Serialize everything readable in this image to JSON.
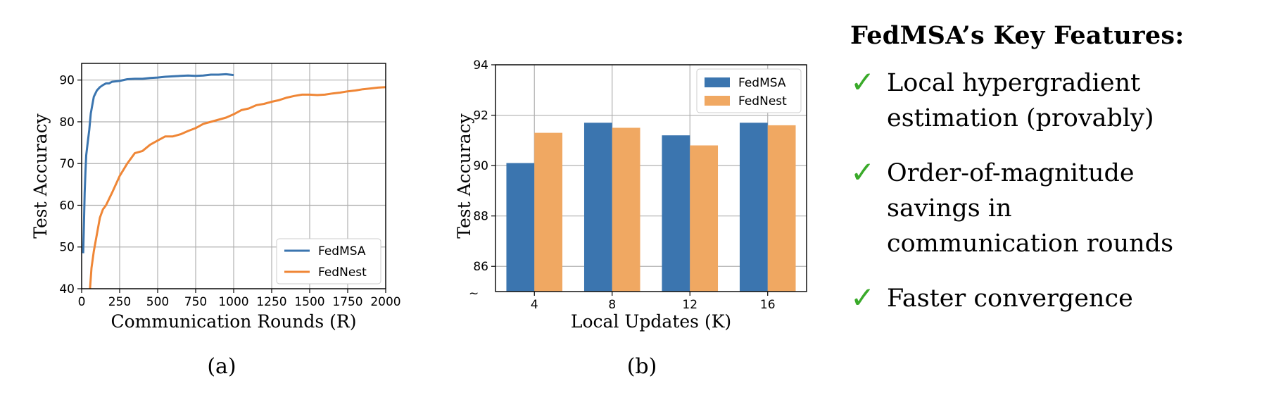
{
  "chart_data": [
    {
      "type": "line",
      "xlabel": "Communication Rounds (R)",
      "ylabel": "Test Accuracy",
      "xlim": [
        0,
        2000
      ],
      "ylim": [
        40,
        94
      ],
      "xticks": [
        0,
        250,
        500,
        750,
        1000,
        1250,
        1500,
        1750,
        2000
      ],
      "yticks": [
        40,
        50,
        60,
        70,
        80,
        90
      ],
      "grid": true,
      "legend": "bottom-right",
      "caption": "(a)",
      "colors": [
        "#3b75af",
        "#ef8636"
      ],
      "series": [
        {
          "name": "FedMSA",
          "x": [
            10,
            15,
            20,
            25,
            30,
            40,
            50,
            60,
            70,
            80,
            100,
            120,
            140,
            160,
            180,
            200,
            250,
            300,
            350,
            400,
            450,
            500,
            550,
            600,
            650,
            700,
            750,
            800,
            850,
            900,
            950,
            1000
          ],
          "y": [
            48.5,
            55,
            63,
            68,
            72,
            75,
            78,
            82,
            84,
            86,
            87.5,
            88.3,
            88.8,
            89.2,
            89.2,
            89.6,
            89.8,
            90.2,
            90.3,
            90.3,
            90.5,
            90.6,
            90.8,
            90.9,
            91.0,
            91.1,
            91.0,
            91.1,
            91.3,
            91.3,
            91.4,
            91.2
          ]
        },
        {
          "name": "FedNest",
          "x": [
            55,
            65,
            80,
            100,
            120,
            140,
            160,
            200,
            250,
            300,
            350,
            400,
            450,
            500,
            550,
            600,
            650,
            700,
            750,
            800,
            850,
            900,
            950,
            1000,
            1050,
            1100,
            1150,
            1200,
            1250,
            1300,
            1350,
            1400,
            1450,
            1500,
            1550,
            1600,
            1650,
            1700,
            1750,
            1800,
            1850,
            1900,
            1950,
            2000
          ],
          "y": [
            40,
            45,
            49,
            53,
            57,
            59,
            60,
            63,
            67,
            70,
            72.5,
            73,
            74.5,
            75.5,
            76.5,
            76.5,
            77,
            77.8,
            78.5,
            79.5,
            80,
            80.5,
            81,
            81.8,
            82.8,
            83.2,
            84,
            84.3,
            84.8,
            85.2,
            85.8,
            86.2,
            86.5,
            86.5,
            86.4,
            86.5,
            86.8,
            87,
            87.3,
            87.5,
            87.8,
            88,
            88.2,
            88.3
          ]
        }
      ]
    },
    {
      "type": "bar",
      "xlabel": "Local Updates (K)",
      "ylabel": "Test Accuracy",
      "categories": [
        "4",
        "8",
        "12",
        "16"
      ],
      "ylim": [
        85,
        94
      ],
      "yticks": [
        86,
        88,
        90,
        92,
        94
      ],
      "grid": true,
      "legend": "top-right",
      "caption": "(b)",
      "axis_break_mark": "~",
      "colors": [
        "#3b75af",
        "#f0a862"
      ],
      "series": [
        {
          "name": "FedMSA",
          "values": [
            90.1,
            91.7,
            91.2,
            91.7
          ]
        },
        {
          "name": "FedNest",
          "values": [
            91.3,
            91.5,
            90.8,
            91.6
          ]
        }
      ]
    }
  ],
  "features": {
    "title": "FedMSA’s Key Features:",
    "check_mark": "✓",
    "items": [
      "Local hypergradient estimation (provably)",
      "Order-of-magnitude savings in communication rounds",
      "Faster convergence"
    ]
  }
}
